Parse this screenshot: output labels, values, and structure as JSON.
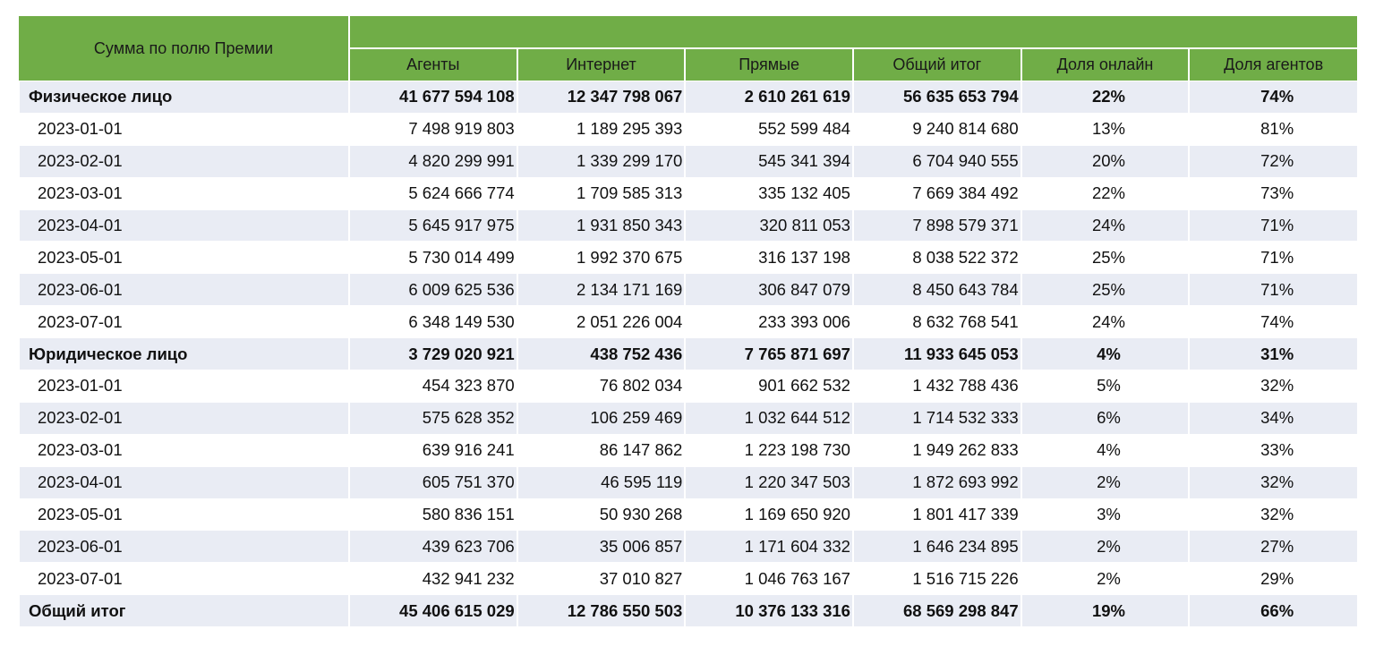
{
  "header": {
    "corner": "Сумма по полю Премии",
    "columns": [
      "Агенты",
      "Интернет",
      "Прямые",
      "Общий итог",
      "Доля онлайн",
      "Доля агентов"
    ]
  },
  "rows": [
    {
      "type": "group",
      "label": "Физическое лицо",
      "values": [
        "41 677 594 108",
        "12 347 798 067",
        "2 610 261 619",
        "56 635 653 794",
        "22%",
        "74%"
      ]
    },
    {
      "type": "child",
      "label": "2023-01-01",
      "values": [
        "7 498 919 803",
        "1 189 295 393",
        "552 599 484",
        "9 240 814 680",
        "13%",
        "81%"
      ]
    },
    {
      "type": "child",
      "label": "2023-02-01",
      "values": [
        "4 820 299 991",
        "1 339 299 170",
        "545 341 394",
        "6 704 940 555",
        "20%",
        "72%"
      ]
    },
    {
      "type": "child",
      "label": "2023-03-01",
      "values": [
        "5 624 666 774",
        "1 709 585 313",
        "335 132 405",
        "7 669 384 492",
        "22%",
        "73%"
      ]
    },
    {
      "type": "child",
      "label": "2023-04-01",
      "values": [
        "5 645 917 975",
        "1 931 850 343",
        "320 811 053",
        "7 898 579 371",
        "24%",
        "71%"
      ]
    },
    {
      "type": "child",
      "label": "2023-05-01",
      "values": [
        "5 730 014 499",
        "1 992 370 675",
        "316 137 198",
        "8 038 522 372",
        "25%",
        "71%"
      ]
    },
    {
      "type": "child",
      "label": "2023-06-01",
      "values": [
        "6 009 625 536",
        "2 134 171 169",
        "306 847 079",
        "8 450 643 784",
        "25%",
        "71%"
      ]
    },
    {
      "type": "child",
      "label": "2023-07-01",
      "values": [
        "6 348 149 530",
        "2 051 226 004",
        "233 393 006",
        "8 632 768 541",
        "24%",
        "74%"
      ]
    },
    {
      "type": "group",
      "label": "Юридическое лицо",
      "values": [
        "3 729 020 921",
        "438 752 436",
        "7 765 871 697",
        "11 933 645 053",
        "4%",
        "31%"
      ]
    },
    {
      "type": "child",
      "label": "2023-01-01",
      "values": [
        "454 323 870",
        "76 802 034",
        "901 662 532",
        "1 432 788 436",
        "5%",
        "32%"
      ]
    },
    {
      "type": "child",
      "label": "2023-02-01",
      "values": [
        "575 628 352",
        "106 259 469",
        "1 032 644 512",
        "1 714 532 333",
        "6%",
        "34%"
      ]
    },
    {
      "type": "child",
      "label": "2023-03-01",
      "values": [
        "639 916 241",
        "86 147 862",
        "1 223 198 730",
        "1 949 262 833",
        "4%",
        "33%"
      ]
    },
    {
      "type": "child",
      "label": "2023-04-01",
      "values": [
        "605 751 370",
        "46 595 119",
        "1 220 347 503",
        "1 872 693 992",
        "2%",
        "32%"
      ]
    },
    {
      "type": "child",
      "label": "2023-05-01",
      "values": [
        "580 836 151",
        "50 930 268",
        "1 169 650 920",
        "1 801 417 339",
        "3%",
        "32%"
      ]
    },
    {
      "type": "child",
      "label": "2023-06-01",
      "values": [
        "439 623 706",
        "35 006 857",
        "1 171 604 332",
        "1 646 234 895",
        "2%",
        "27%"
      ]
    },
    {
      "type": "child",
      "label": "2023-07-01",
      "values": [
        "432 941 232",
        "37 010 827",
        "1 046 763 167",
        "1 516 715 226",
        "2%",
        "29%"
      ]
    },
    {
      "type": "total",
      "label": "Общий итог",
      "values": [
        "45 406 615 029",
        "12 786 550 503",
        "10 376 133 316",
        "68 569 298 847",
        "19%",
        "66%"
      ]
    }
  ]
}
